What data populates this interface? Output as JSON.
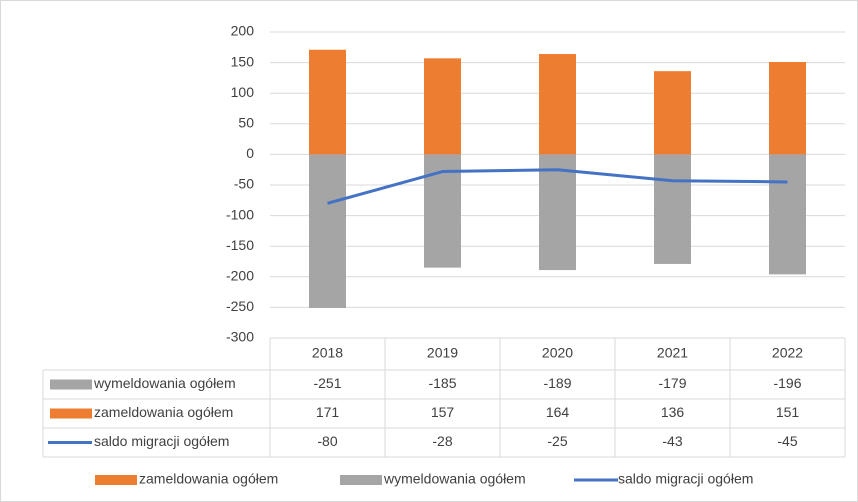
{
  "chart_data": {
    "type": "bar",
    "categories": [
      "2018",
      "2019",
      "2020",
      "2021",
      "2022"
    ],
    "series": [
      {
        "name": "wymeldowania ogółem",
        "color": "#a5a5a5",
        "type": "bar",
        "values": [
          -251,
          -185,
          -189,
          -179,
          -196
        ]
      },
      {
        "name": "zameldowania ogółem",
        "color": "#ed7d31",
        "type": "bar",
        "values": [
          171,
          157,
          164,
          136,
          151
        ]
      },
      {
        "name": "saldo migracji ogółem",
        "color": "#4472c4",
        "type": "line",
        "values": [
          -80,
          -28,
          -25,
          -43,
          -45
        ]
      }
    ],
    "ylim": [
      -300,
      200
    ],
    "yticks": [
      -300,
      -250,
      -200,
      -150,
      -100,
      -50,
      0,
      50,
      100,
      150,
      200
    ],
    "grid": true,
    "data_table": true,
    "legend": "bottom"
  }
}
